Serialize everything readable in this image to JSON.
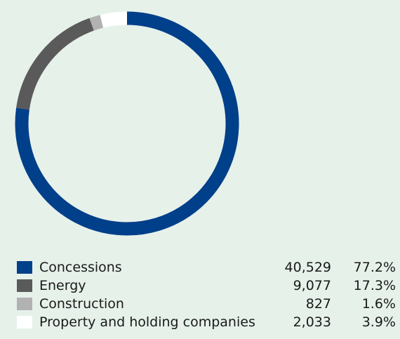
{
  "chart_data": {
    "type": "pie",
    "categories": [
      "Concessions",
      "Energy",
      "Construction",
      "Property and holding companies"
    ],
    "values": [
      40529,
      9077,
      827,
      2033
    ],
    "percents": [
      "77.2%",
      "17.3%",
      "1.6%",
      "3.9%"
    ],
    "value_labels": [
      "40,529",
      "9,077",
      "827",
      "2,033"
    ],
    "colors": [
      "#003f8a",
      "#5a5a5a",
      "#b2b2b2",
      "#ffffff"
    ],
    "title": "",
    "legend_position": "bottom"
  }
}
